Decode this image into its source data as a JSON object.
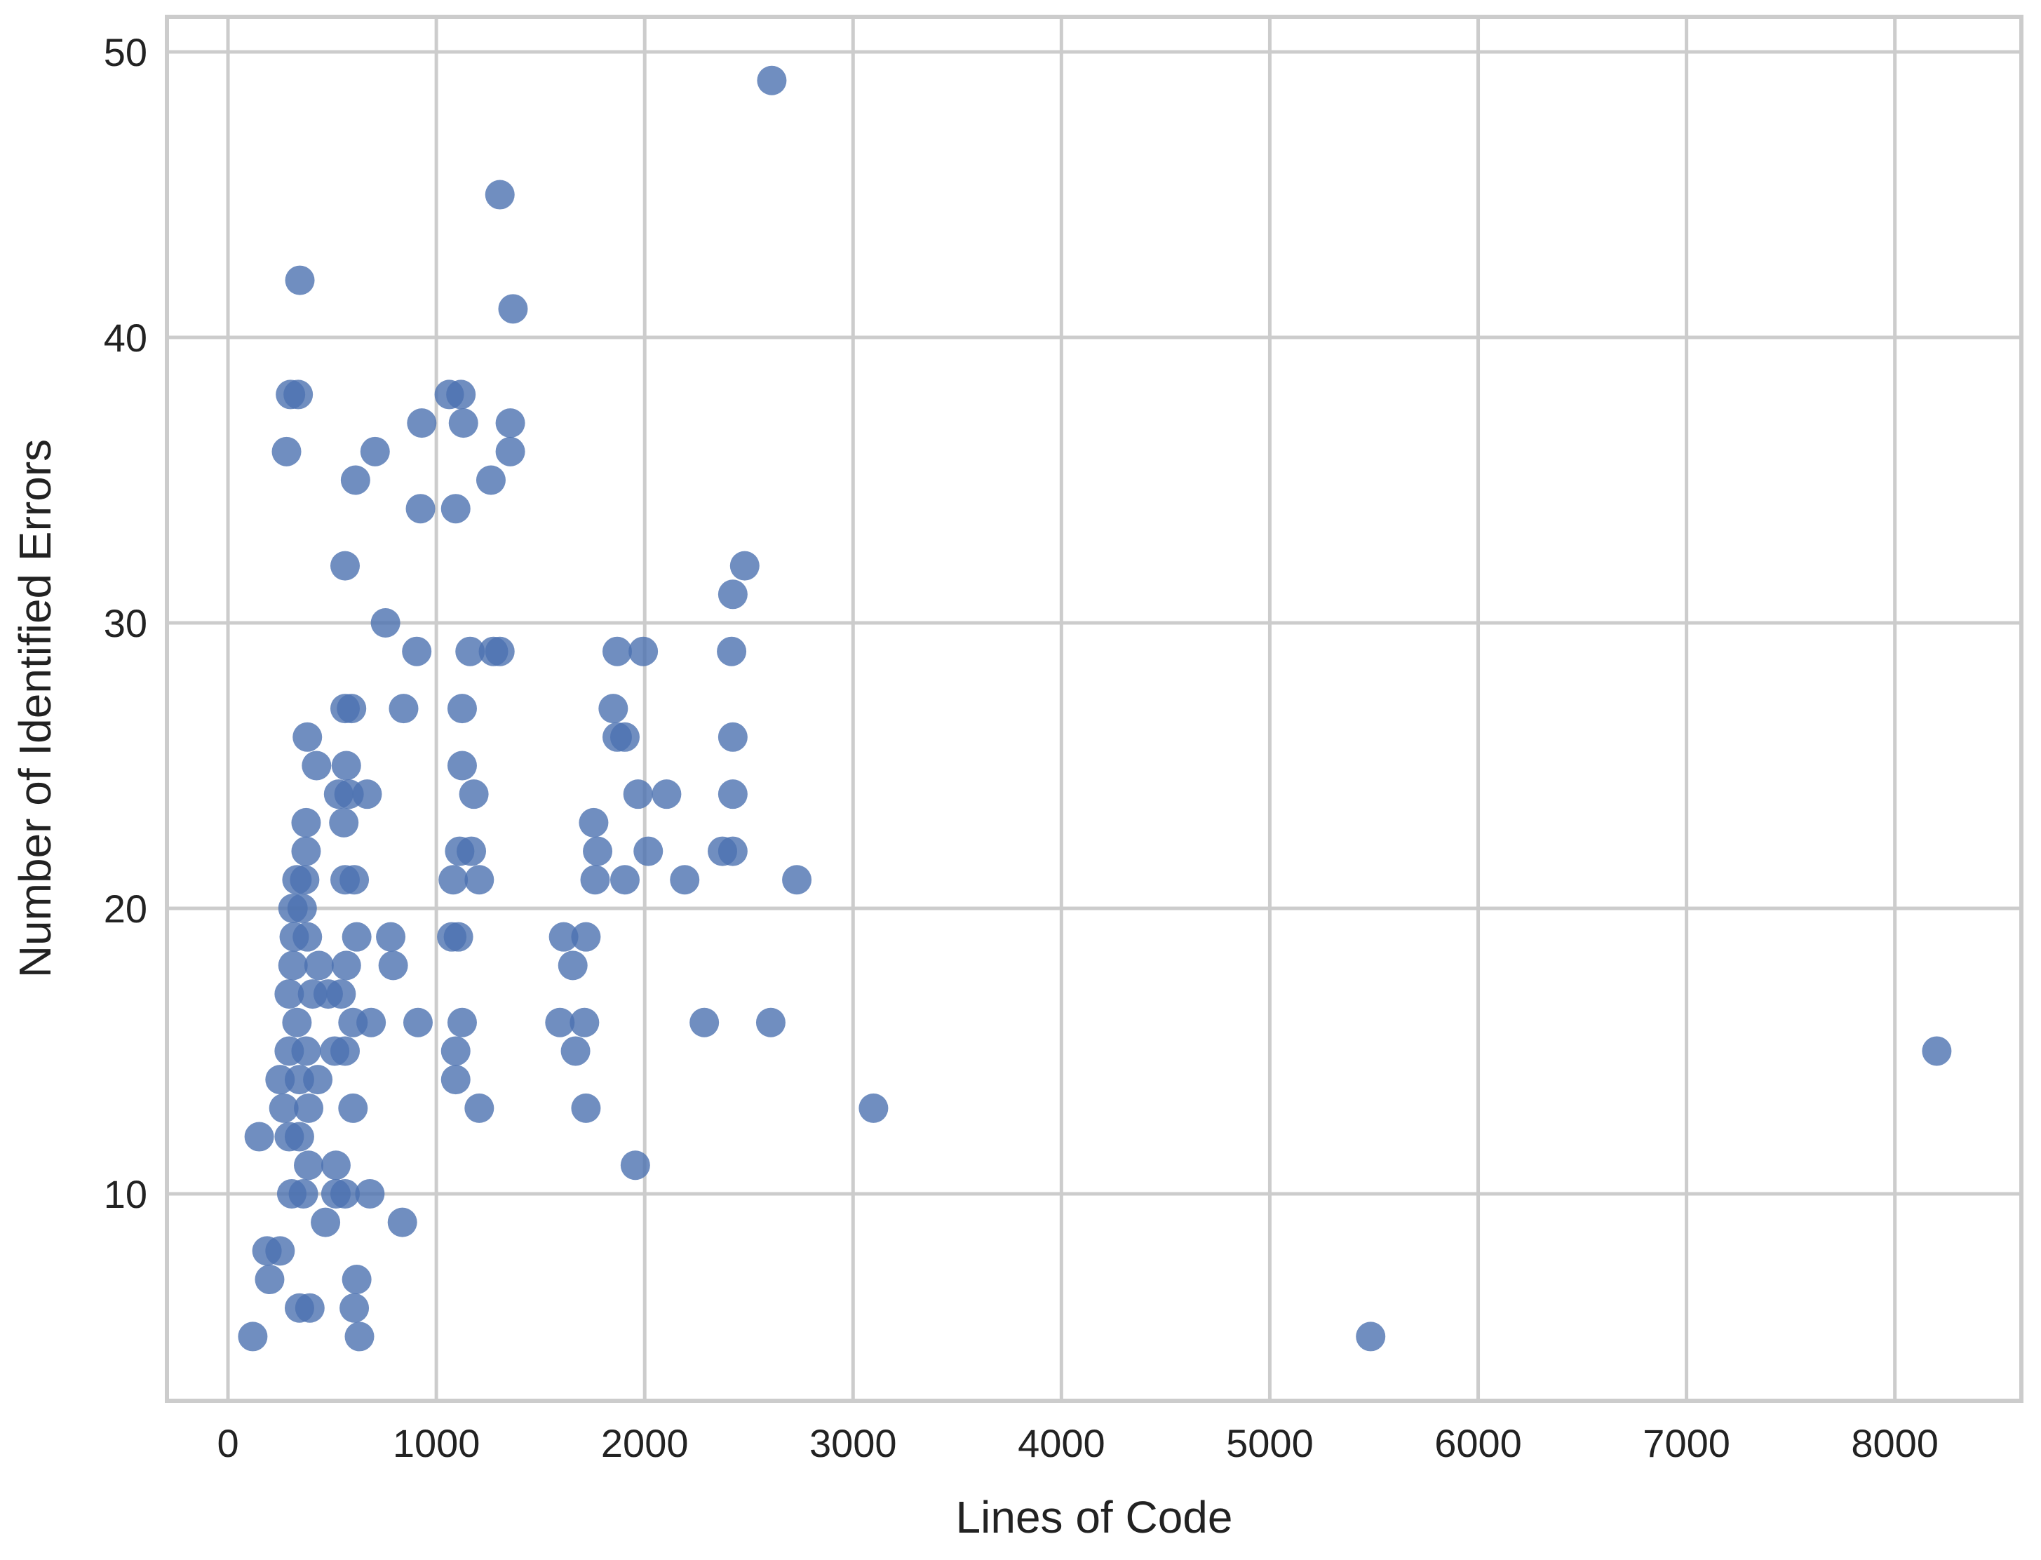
{
  "chart_data": {
    "type": "scatter",
    "xlabel": "Lines of Code",
    "ylabel": "Number of Identified Errors",
    "color": "#4c72b0",
    "grid": true,
    "xlim": [
      -293,
      8607
    ],
    "ylim": [
      2.75,
      51.23
    ],
    "xticks": [
      0,
      1000,
      2000,
      3000,
      4000,
      5000,
      6000,
      7000,
      8000
    ],
    "yticks": [
      10,
      20,
      30,
      40,
      50
    ],
    "x": [
      2610,
      1305,
      345,
      1368,
      300,
      337,
      1062,
      1118,
      930,
      1130,
      1355,
      281,
      706,
      1355,
      612,
      1262,
      924,
      1093,
      562,
      2480,
      2423,
      756,
      906,
      1162,
      1274,
      1305,
      1868,
      1993,
      2417,
      562,
      593,
      843,
      1124,
      1849,
      381,
      1868,
      1905,
      2423,
      425,
      568,
      1124,
      531,
      581,
      668,
      1180,
      1968,
      2105,
      2423,
      375,
      556,
      1755,
      375,
      1112,
      1168,
      1774,
      2017,
      2373,
      2423,
      331,
      368,
      562,
      606,
      1081,
      1206,
      1762,
      1905,
      2192,
      2730,
      312,
      356,
      318,
      381,
      618,
      781,
      1074,
      1106,
      1611,
      1718,
      312,
      437,
      568,
      793,
      1655,
      294,
      406,
      481,
      543,
      331,
      600,
      687,
      912,
      1124,
      1593,
      1711,
      2286,
      2605,
      294,
      375,
      512,
      562,
      1093,
      1668,
      8201,
      250,
      343,
      431,
      1093,
      268,
      387,
      600,
      1206,
      1718,
      3098,
      294,
      150,
      343,
      306,
      362,
      518,
      562,
      681,
      518,
      387,
      1955,
      468,
      837,
      187,
      250,
      200,
      618,
      343,
      393,
      606,
      119,
      631,
      5484
    ],
    "values": [
      49,
      45,
      42,
      41,
      38,
      38,
      38,
      38,
      37,
      37,
      37,
      36,
      36,
      36,
      35,
      35,
      34,
      34,
      32,
      32,
      31,
      30,
      29,
      29,
      29,
      29,
      29,
      29,
      29,
      27,
      27,
      27,
      27,
      27,
      26,
      26,
      26,
      26,
      25,
      25,
      25,
      24,
      24,
      24,
      24,
      24,
      24,
      24,
      23,
      23,
      23,
      22,
      22,
      22,
      22,
      22,
      22,
      22,
      21,
      21,
      21,
      21,
      21,
      21,
      21,
      21,
      21,
      21,
      20,
      20,
      19,
      19,
      19,
      19,
      19,
      19,
      19,
      19,
      18,
      18,
      18,
      18,
      18,
      17,
      17,
      17,
      17,
      16,
      16,
      16,
      16,
      16,
      16,
      16,
      16,
      16,
      15,
      15,
      15,
      15,
      15,
      15,
      15,
      14,
      14,
      14,
      14,
      13,
      13,
      13,
      13,
      13,
      13,
      12,
      12,
      12,
      10,
      10,
      10,
      10,
      10,
      11,
      11,
      11,
      9,
      9,
      8,
      8,
      7,
      7,
      6,
      6,
      6,
      5,
      5,
      5
    ]
  }
}
